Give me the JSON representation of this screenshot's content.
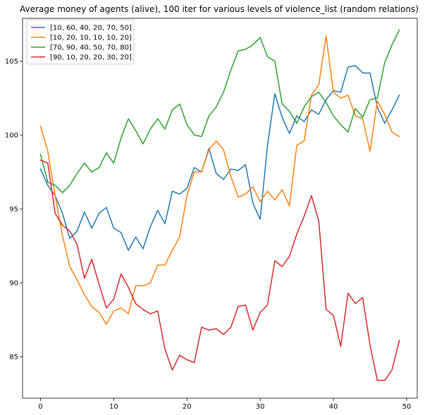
{
  "chart_data": {
    "type": "line",
    "title": "Average money of agents (alive), 100 iter for various levels of violence_list (random relations)",
    "xlabel": "",
    "ylabel": "",
    "x": [
      0,
      1,
      2,
      3,
      4,
      5,
      6,
      7,
      8,
      9,
      10,
      11,
      12,
      13,
      14,
      15,
      16,
      17,
      18,
      19,
      20,
      21,
      22,
      23,
      24,
      25,
      26,
      27,
      28,
      29,
      30,
      31,
      32,
      33,
      34,
      35,
      36,
      37,
      38,
      39,
      40,
      41,
      42,
      43,
      44,
      45,
      46,
      47,
      48,
      49
    ],
    "xlim": [
      -2.45,
      51.45
    ],
    "ylim": [
      82.2,
      107.9
    ],
    "xticks": [
      0,
      10,
      20,
      30,
      40,
      50
    ],
    "yticks": [
      85,
      90,
      95,
      100,
      105
    ],
    "xtick_labels": [
      "0",
      "10",
      "20",
      "30",
      "40",
      "50"
    ],
    "ytick_labels": [
      "85",
      "90",
      "95",
      "100",
      "105"
    ],
    "grid": false,
    "legend_position": "upper-left",
    "series": [
      {
        "name": "[10, 60, 40, 20, 70, 50]",
        "color": "#1f77b4",
        "values": [
          97.7,
          96.6,
          95.9,
          94.7,
          93.0,
          93.5,
          94.8,
          93.7,
          94.7,
          95.1,
          93.7,
          93.4,
          92.2,
          93.1,
          92.3,
          93.8,
          94.9,
          94.0,
          96.2,
          96.0,
          96.4,
          97.8,
          97.5,
          99.1,
          97.4,
          97.0,
          97.7,
          97.6,
          98.0,
          95.4,
          94.3,
          99.3,
          102.8,
          101.2,
          100.1,
          101.3,
          100.9,
          101.7,
          101.4,
          102.4,
          103.0,
          102.9,
          104.6,
          104.7,
          104.2,
          104.2,
          101.9,
          100.8,
          101.7,
          102.7
        ]
      },
      {
        "name": "[10, 20, 10, 10, 10, 20]",
        "color": "#ff7f0e",
        "values": [
          100.6,
          98.9,
          95.9,
          93.2,
          91.1,
          90.2,
          89.2,
          88.4,
          88.0,
          87.2,
          88.1,
          88.3,
          87.9,
          89.8,
          89.8,
          90.0,
          91.2,
          91.2,
          92.2,
          93.1,
          95.9,
          97.5,
          97.5,
          99.0,
          99.6,
          99.0,
          97.2,
          95.8,
          96.0,
          96.5,
          95.5,
          96.2,
          95.6,
          96.3,
          95.2,
          99.3,
          99.6,
          102.7,
          103.4,
          106.7,
          102.9,
          102.5,
          102.7,
          101.3,
          101.1,
          98.9,
          102.3,
          101.4,
          100.2,
          99.9
        ]
      },
      {
        "name": "[70, 90, 40, 50, 70, 80]",
        "color": "#2ca02c",
        "values": [
          98.7,
          96.8,
          96.6,
          96.1,
          96.6,
          97.4,
          98.1,
          97.5,
          97.8,
          98.8,
          98.1,
          99.8,
          101.1,
          100.3,
          99.4,
          100.4,
          101.1,
          100.4,
          101.7,
          102.1,
          100.7,
          100.0,
          99.9,
          101.3,
          101.9,
          102.9,
          104.4,
          105.7,
          105.8,
          106.1,
          106.6,
          105.3,
          105.0,
          102.1,
          101.6,
          100.8,
          101.9,
          102.6,
          102.9,
          102.2,
          101.3,
          100.7,
          100.2,
          101.8,
          101.2,
          102.4,
          102.5,
          104.9,
          106.1,
          107.1
        ]
      },
      {
        "name": "[90, 10, 20, 20, 30, 20]",
        "color": "#d62728",
        "values": [
          98.3,
          98.1,
          94.7,
          93.9,
          93.5,
          92.6,
          90.3,
          91.6,
          89.9,
          88.3,
          88.9,
          90.6,
          89.7,
          88.6,
          88.2,
          87.9,
          88.1,
          85.5,
          84.1,
          85.1,
          84.8,
          84.6,
          87.0,
          86.8,
          86.9,
          86.5,
          87.0,
          88.4,
          88.5,
          86.8,
          88.0,
          88.5,
          91.5,
          91.1,
          91.8,
          93.3,
          94.5,
          95.9,
          94.2,
          88.2,
          87.8,
          85.7,
          89.3,
          88.6,
          89.0,
          85.8,
          83.4,
          83.4,
          84.1,
          86.1
        ]
      }
    ]
  }
}
